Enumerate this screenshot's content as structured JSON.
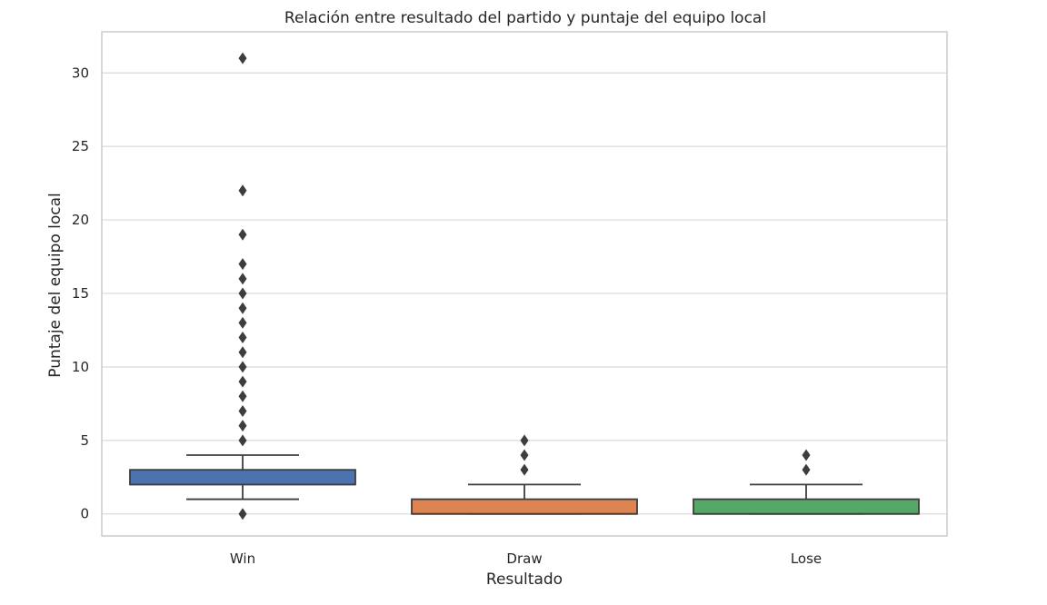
{
  "chart_data": {
    "type": "box",
    "title": "Relación entre resultado del partido y puntaje del equipo local",
    "xlabel": "Resultado",
    "ylabel": "Puntaje del equipo local",
    "ylim": [
      -1.5,
      32.8
    ],
    "yticks": [
      0,
      5,
      10,
      15,
      20,
      25,
      30
    ],
    "grid": true,
    "categories": [
      "Win",
      "Draw",
      "Lose"
    ],
    "boxes": [
      {
        "category": "Win",
        "color": "#4c72b0",
        "whisker_low": 1,
        "q1": 2,
        "median": 2,
        "q3": 3,
        "whisker_high": 4,
        "outliers": [
          0,
          5,
          6,
          7,
          8,
          9,
          10,
          11,
          12,
          13,
          14,
          15,
          16,
          17,
          19,
          22,
          31
        ]
      },
      {
        "category": "Draw",
        "color": "#dd8452",
        "whisker_low": 0,
        "q1": 0,
        "median": 0,
        "q3": 1,
        "whisker_high": 2,
        "outliers": [
          3,
          4,
          5
        ]
      },
      {
        "category": "Lose",
        "color": "#55a868",
        "whisker_low": 0,
        "q1": 0,
        "median": 0,
        "q3": 1,
        "whisker_high": 2,
        "outliers": [
          3,
          4
        ]
      }
    ]
  }
}
